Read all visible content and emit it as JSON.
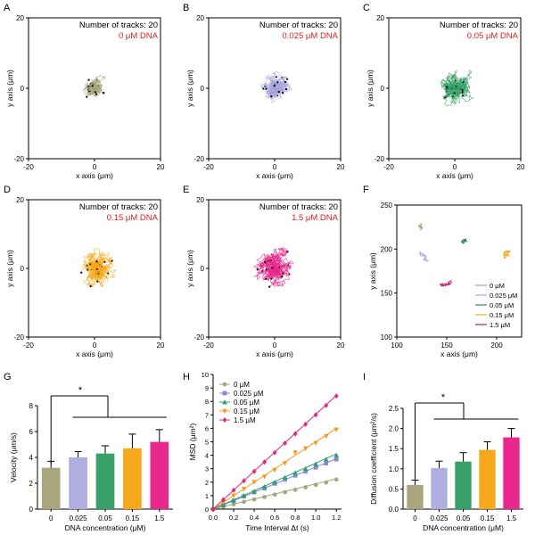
{
  "panel_letters": [
    "A",
    "B",
    "C",
    "D",
    "E",
    "F",
    "G",
    "H",
    "I"
  ],
  "track_panels": [
    {
      "count_label": "Number of tracks: 20",
      "conc_label": "0 μM DNA",
      "color": "#a9a67e",
      "xlabel": "x axis (μm)",
      "ylabel": "y axis (μm)",
      "ticks": [
        -20,
        0,
        20
      ]
    },
    {
      "count_label": "Number of tracks: 20",
      "conc_label": "0.025 μM DNA",
      "color": "#a8a6dc",
      "xlabel": "x axis (μm)",
      "ylabel": "y axis (μm)",
      "ticks": [
        -20,
        0,
        20
      ]
    },
    {
      "count_label": "Number of tracks: 20",
      "conc_label": "0.05 μM DNA",
      "color": "#3aa06a",
      "xlabel": "x axis (μm)",
      "ylabel": "y axis (μm)",
      "ticks": [
        -20,
        0,
        20
      ]
    },
    {
      "count_label": "Number of tracks: 20",
      "conc_label": "0.15 μM DNA",
      "color": "#f5a81a",
      "xlabel": "x axis (μm)",
      "ylabel": "y axis (μm)",
      "ticks": [
        -20,
        0,
        20
      ]
    },
    {
      "count_label": "Number of tracks: 20",
      "conc_label": "1.5 μM DNA",
      "color": "#e8288a",
      "xlabel": "x axis (μm)",
      "ylabel": "y axis (μm)",
      "ticks": [
        -20,
        0,
        20
      ]
    }
  ],
  "conc_label_color": "#e0201c",
  "chart_data": [
    {
      "type": "scatter",
      "panel": "F",
      "title": "",
      "xlabel": "x axis (μm)",
      "ylabel": "y axis (μm)",
      "xlim": [
        100,
        225
      ],
      "ylim": [
        100,
        250
      ],
      "xticks": [
        100,
        150,
        200
      ],
      "yticks": [
        100,
        150,
        200,
        250
      ],
      "legend": [
        {
          "name": "0 μM",
          "color": "#a9a67e",
          "center": [
            123,
            226
          ]
        },
        {
          "name": "0.025 μM",
          "color": "#a8a6dc",
          "center": [
            128,
            192
          ]
        },
        {
          "name": "0.05 μM",
          "color": "#2e8b57",
          "center": [
            168,
            211
          ]
        },
        {
          "name": "0.15 μM",
          "color": "#f5a81a",
          "center": [
            208,
            195
          ]
        },
        {
          "name": "1.5 μM",
          "color": "#c2187a",
          "center": [
            150,
            160
          ]
        }
      ]
    },
    {
      "type": "bar",
      "panel": "G",
      "title": "",
      "categories": [
        "0",
        "0.025",
        "0.05",
        "0.15",
        "1.5"
      ],
      "values": [
        3.2,
        4.0,
        4.3,
        4.7,
        5.2
      ],
      "errors": [
        0.5,
        0.45,
        0.6,
        1.1,
        0.95
      ],
      "colors": [
        "#a9a67e",
        "#b0aee0",
        "#3aa06a",
        "#f5a81a",
        "#e8288a"
      ],
      "xlabel": "DNA  concentration (μM)",
      "ylabel": "Velocity (μm/s)",
      "ylim": [
        0,
        8
      ],
      "yticks": [
        0,
        2,
        4,
        6,
        8
      ],
      "significance": "*"
    },
    {
      "type": "line",
      "panel": "H",
      "title": "",
      "xlabel": "Time Interval Δt (s)",
      "ylabel": "MSD (μm²)",
      "xlim": [
        0,
        1.25
      ],
      "ylim": [
        0,
        10
      ],
      "xticks": [
        0.0,
        0.2,
        0.4,
        0.6,
        0.8,
        1.0,
        1.2
      ],
      "yticks": [
        0,
        1,
        2,
        3,
        4,
        5,
        6,
        7,
        8,
        9,
        10
      ],
      "x": [
        0.1,
        0.2,
        0.3,
        0.4,
        0.5,
        0.6,
        0.7,
        0.8,
        0.9,
        1.0,
        1.1,
        1.2
      ],
      "series": [
        {
          "name": "0 μM",
          "color": "#a9a67e",
          "marker": "circle",
          "values": [
            0.18,
            0.36,
            0.54,
            0.72,
            0.9,
            1.08,
            1.26,
            1.44,
            1.62,
            1.8,
            1.98,
            2.2
          ],
          "fit_end": 2.25
        },
        {
          "name": "0.025 μM",
          "color": "#8b87d8",
          "marker": "square",
          "values": [
            0.3,
            0.62,
            0.95,
            1.25,
            1.55,
            1.9,
            2.2,
            2.5,
            2.8,
            3.1,
            3.4,
            3.7
          ],
          "fit_end": 3.75
        },
        {
          "name": "0.05 μM",
          "color": "#2aa06a",
          "marker": "triangle",
          "values": [
            0.32,
            0.65,
            1.0,
            1.32,
            1.65,
            2.0,
            2.35,
            2.7,
            3.0,
            3.35,
            3.7,
            4.0
          ],
          "fit_end": 4.1
        },
        {
          "name": "0.15 μM",
          "color": "#f59a20",
          "marker": "triangle-down",
          "values": [
            0.5,
            1.0,
            1.5,
            2.0,
            2.4,
            2.9,
            3.4,
            4.2,
            4.5,
            4.9,
            5.4,
            5.9
          ],
          "fit_end": 6.0
        },
        {
          "name": "1.5 μM",
          "color": "#e0287f",
          "marker": "diamond",
          "values": [
            0.7,
            1.4,
            2.1,
            2.8,
            3.5,
            4.2,
            4.9,
            5.6,
            6.3,
            7.0,
            7.7,
            8.4
          ],
          "fit_end": 8.45
        }
      ]
    },
    {
      "type": "bar",
      "panel": "I",
      "title": "",
      "categories": [
        "0",
        "0.025",
        "0.05",
        "0.15",
        "1.5"
      ],
      "values": [
        0.6,
        1.02,
        1.18,
        1.47,
        1.78
      ],
      "errors": [
        0.12,
        0.17,
        0.22,
        0.2,
        0.22
      ],
      "colors": [
        "#a9a67e",
        "#b0aee0",
        "#3aa06a",
        "#f5a81a",
        "#e8288a"
      ],
      "xlabel": "DNA  concentration (μM)",
      "ylabel": "Diffusion coefficient (μm²/s)",
      "ylim": [
        0,
        2.5
      ],
      "yticks": [
        0.0,
        0.5,
        1.0,
        1.5,
        2.0,
        2.5
      ],
      "significance": "*"
    }
  ]
}
